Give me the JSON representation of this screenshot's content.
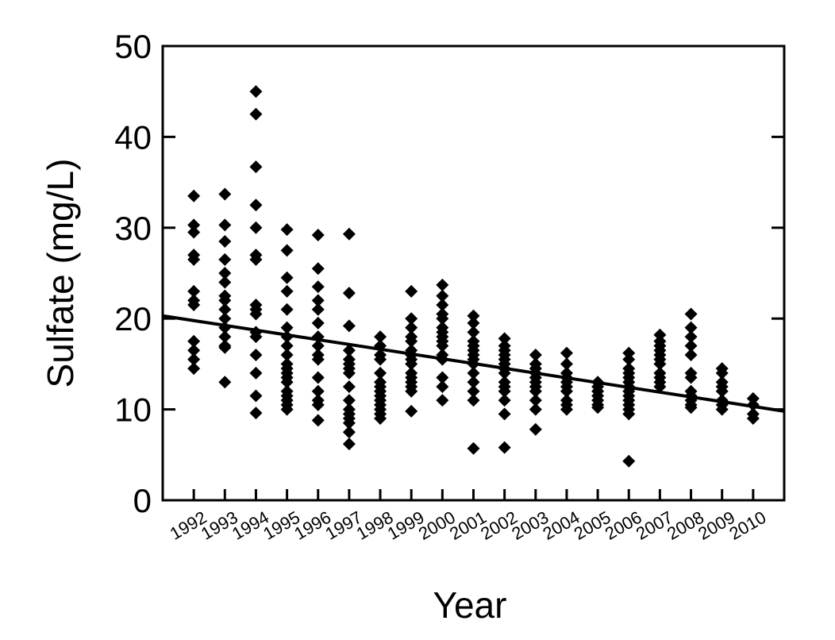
{
  "chart_data": {
    "type": "scatter",
    "x_label": "Year",
    "y_label": "Sulfate (mg/L)",
    "color": "#000000",
    "xlim": [
      1991,
      2011
    ],
    "ylim": [
      0,
      50
    ],
    "xticks": [
      1992,
      1993,
      1994,
      1995,
      1996,
      1997,
      1998,
      1999,
      2000,
      2001,
      2002,
      2003,
      2004,
      2005,
      2006,
      2007,
      2008,
      2009,
      2010
    ],
    "yticks": [
      0,
      10,
      20,
      30,
      40,
      50
    ],
    "groups": [
      {
        "x": 1992,
        "values": [
          33.5,
          30.3,
          29.5,
          27,
          26.5,
          23,
          22,
          21.5,
          17.5,
          16.5,
          15.5,
          14.5
        ]
      },
      {
        "x": 1993,
        "values": [
          33.7,
          30.3,
          28.5,
          26.5,
          25,
          24,
          22.5,
          22,
          21,
          20,
          19,
          18,
          17,
          16.8,
          13
        ]
      },
      {
        "x": 1994,
        "values": [
          45,
          42.5,
          36.7,
          32.5,
          30,
          27,
          26.5,
          21.5,
          21,
          20.5,
          18.5,
          18,
          16,
          14,
          11.5,
          9.6
        ]
      },
      {
        "x": 1995,
        "values": [
          29.8,
          27.5,
          24.5,
          23,
          21,
          19,
          18,
          17,
          16,
          15,
          14.5,
          14,
          13.5,
          13,
          12,
          11.5,
          11,
          10.5,
          10
        ]
      },
      {
        "x": 1996,
        "values": [
          29.2,
          25.5,
          23.5,
          22,
          21,
          19.5,
          18,
          17,
          16,
          15.5,
          13.5,
          12,
          11,
          10.5,
          8.8
        ]
      },
      {
        "x": 1997,
        "values": [
          29.3,
          22.8,
          19.2,
          16.5,
          15.5,
          15,
          14.5,
          14,
          12.5,
          11,
          10,
          9.5,
          9,
          8.5,
          7.5,
          6.2
        ]
      },
      {
        "x": 1998,
        "values": [
          18,
          17,
          16,
          15.5,
          14,
          13,
          12.5,
          12,
          11.5,
          11,
          10.5,
          10,
          9.5,
          9
        ]
      },
      {
        "x": 1999,
        "values": [
          23,
          20,
          19,
          18,
          17.5,
          16.5,
          16,
          15.5,
          15,
          14,
          13.5,
          13,
          12.5,
          12,
          9.8
        ]
      },
      {
        "x": 2000,
        "values": [
          23.7,
          22.5,
          21.5,
          20.5,
          20,
          19,
          18.5,
          18,
          17.5,
          17,
          16,
          15.5,
          13.5,
          12.5,
          11
        ]
      },
      {
        "x": 2001,
        "values": [
          20.3,
          19.5,
          18.5,
          17.5,
          17,
          16.5,
          16,
          15.5,
          15,
          14,
          13,
          12,
          11,
          5.7
        ]
      },
      {
        "x": 2002,
        "values": [
          17.8,
          17,
          16.5,
          16,
          15.5,
          15,
          14.5,
          14,
          13,
          12.5,
          12,
          11,
          9.5,
          5.8
        ]
      },
      {
        "x": 2003,
        "values": [
          16,
          15,
          14.5,
          14,
          13.5,
          13,
          12.5,
          12,
          11,
          10,
          7.8
        ]
      },
      {
        "x": 2004,
        "values": [
          16.2,
          15,
          14,
          13.5,
          13,
          12.5,
          12,
          11,
          10.5,
          10
        ]
      },
      {
        "x": 2005,
        "values": [
          13,
          12.5,
          12,
          11.5,
          11,
          10.5,
          10.2
        ]
      },
      {
        "x": 2006,
        "values": [
          16.2,
          15.5,
          14.5,
          14,
          13.5,
          13,
          12.5,
          12,
          11.5,
          11,
          10.5,
          10,
          9.5,
          4.3
        ]
      },
      {
        "x": 2007,
        "values": [
          18.2,
          17.5,
          17,
          16.5,
          16,
          15.5,
          15,
          14,
          13.5,
          13,
          12.5
        ]
      },
      {
        "x": 2008,
        "values": [
          20.5,
          19,
          18,
          17,
          16,
          14,
          13.5,
          12,
          11.5,
          11,
          10.5,
          10.2
        ]
      },
      {
        "x": 2009,
        "values": [
          14.5,
          14,
          13,
          12.5,
          12,
          11,
          10.5,
          10
        ]
      },
      {
        "x": 2010,
        "values": [
          11.2,
          10.5,
          9.5,
          9
        ]
      }
    ],
    "trend_line": {
      "x": [
        1991,
        2011
      ],
      "values": [
        20.3,
        9.8
      ]
    }
  }
}
